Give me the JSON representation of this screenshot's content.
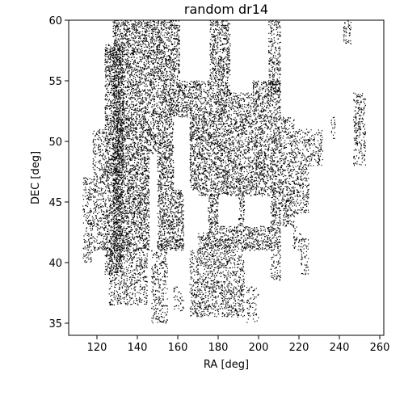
{
  "chart_data": {
    "type": "scatter",
    "title": "random dr14",
    "xlabel": "RA [deg]",
    "ylabel": "DEC [deg]",
    "xlim": [
      106,
      262
    ],
    "ylim": [
      34,
      60
    ],
    "xticks": [
      120,
      140,
      160,
      180,
      200,
      220,
      240,
      260
    ],
    "yticks": [
      35,
      40,
      45,
      50,
      55,
      60
    ],
    "grid": false,
    "legend": "none",
    "point_color": "#000000",
    "series": [
      {
        "regions": [
          {
            "ra": [
              124,
              133
            ],
            "dec": [
              39,
              58
            ],
            "density": 0.95
          },
          {
            "ra": [
              128,
              163
            ],
            "dec": [
              41,
              60
            ],
            "density": 0.95
          },
          {
            "ra": [
              163,
              186
            ],
            "dec": [
              41,
              60
            ],
            "density": 0.9
          },
          {
            "ra": [
              186,
              197
            ],
            "dec": [
              41,
              54
            ],
            "density": 0.8
          },
          {
            "ra": [
              197,
              211
            ],
            "dec": [
              41,
              55
            ],
            "density": 0.85
          },
          {
            "ra": [
              205,
              211
            ],
            "dec": [
              54,
              60
            ],
            "density": 0.7
          },
          {
            "ra": [
              118,
              124
            ],
            "dec": [
              41,
              51
            ],
            "density": 0.6
          },
          {
            "ra": [
              113,
              118
            ],
            "dec": [
              40,
              47
            ],
            "density": 0.55
          },
          {
            "ra": [
              211,
              218
            ],
            "dec": [
              43,
              52
            ],
            "density": 0.7
          },
          {
            "ra": [
              218,
              225
            ],
            "dec": [
              44,
              51
            ],
            "density": 0.6
          },
          {
            "ra": [
              225,
              232
            ],
            "dec": [
              48,
              51
            ],
            "density": 0.5
          },
          {
            "ra": [
              236,
              238
            ],
            "dec": [
              50,
              52
            ],
            "density": 0.5
          },
          {
            "ra": [
              242,
              246
            ],
            "dec": [
              58,
              60
            ],
            "density": 0.6
          },
          {
            "ra": [
              247,
              253
            ],
            "dec": [
              48,
              54
            ],
            "density": 0.6
          },
          {
            "ra": [
              126,
              145
            ],
            "dec": [
              36.5,
              41
            ],
            "density": 0.6
          },
          {
            "ra": [
              147,
              155
            ],
            "dec": [
              35,
              41
            ],
            "density": 0.55
          },
          {
            "ra": [
              158,
              163
            ],
            "dec": [
              36,
              38
            ],
            "density": 0.4
          },
          {
            "ra": [
              166,
              193
            ],
            "dec": [
              35.5,
              41
            ],
            "density": 0.65
          },
          {
            "ra": [
              194,
              200
            ],
            "dec": [
              35,
              38
            ],
            "density": 0.35
          },
          {
            "ra": [
              206,
              211
            ],
            "dec": [
              38.5,
              41
            ],
            "density": 0.5
          },
          {
            "ra": [
              221,
              225
            ],
            "dec": [
              39,
              42
            ],
            "density": 0.5
          },
          {
            "ra": [
              217,
              221
            ],
            "dec": [
              41,
              43
            ],
            "density": 0.5
          }
        ],
        "holes": [
          {
            "ra": [
              161,
              176
            ],
            "dec": [
              55,
              60
            ]
          },
          {
            "ra": [
              163,
              170
            ],
            "dec": [
              41,
              46
            ]
          },
          {
            "ra": [
              170,
              175
            ],
            "dec": [
              42.5,
              45.5
            ]
          },
          {
            "ra": [
              180,
              190
            ],
            "dec": [
              43,
              45.5
            ]
          },
          {
            "ra": [
              193,
              206
            ],
            "dec": [
              43,
              45.5
            ]
          },
          {
            "ra": [
              186,
              196
            ],
            "dec": [
              54,
              60
            ]
          },
          {
            "ra": [
              158,
              166
            ],
            "dec": [
              46,
              52
            ]
          },
          {
            "ra": [
              146,
              150
            ],
            "dec": [
              41,
              49
            ]
          }
        ]
      }
    ]
  }
}
